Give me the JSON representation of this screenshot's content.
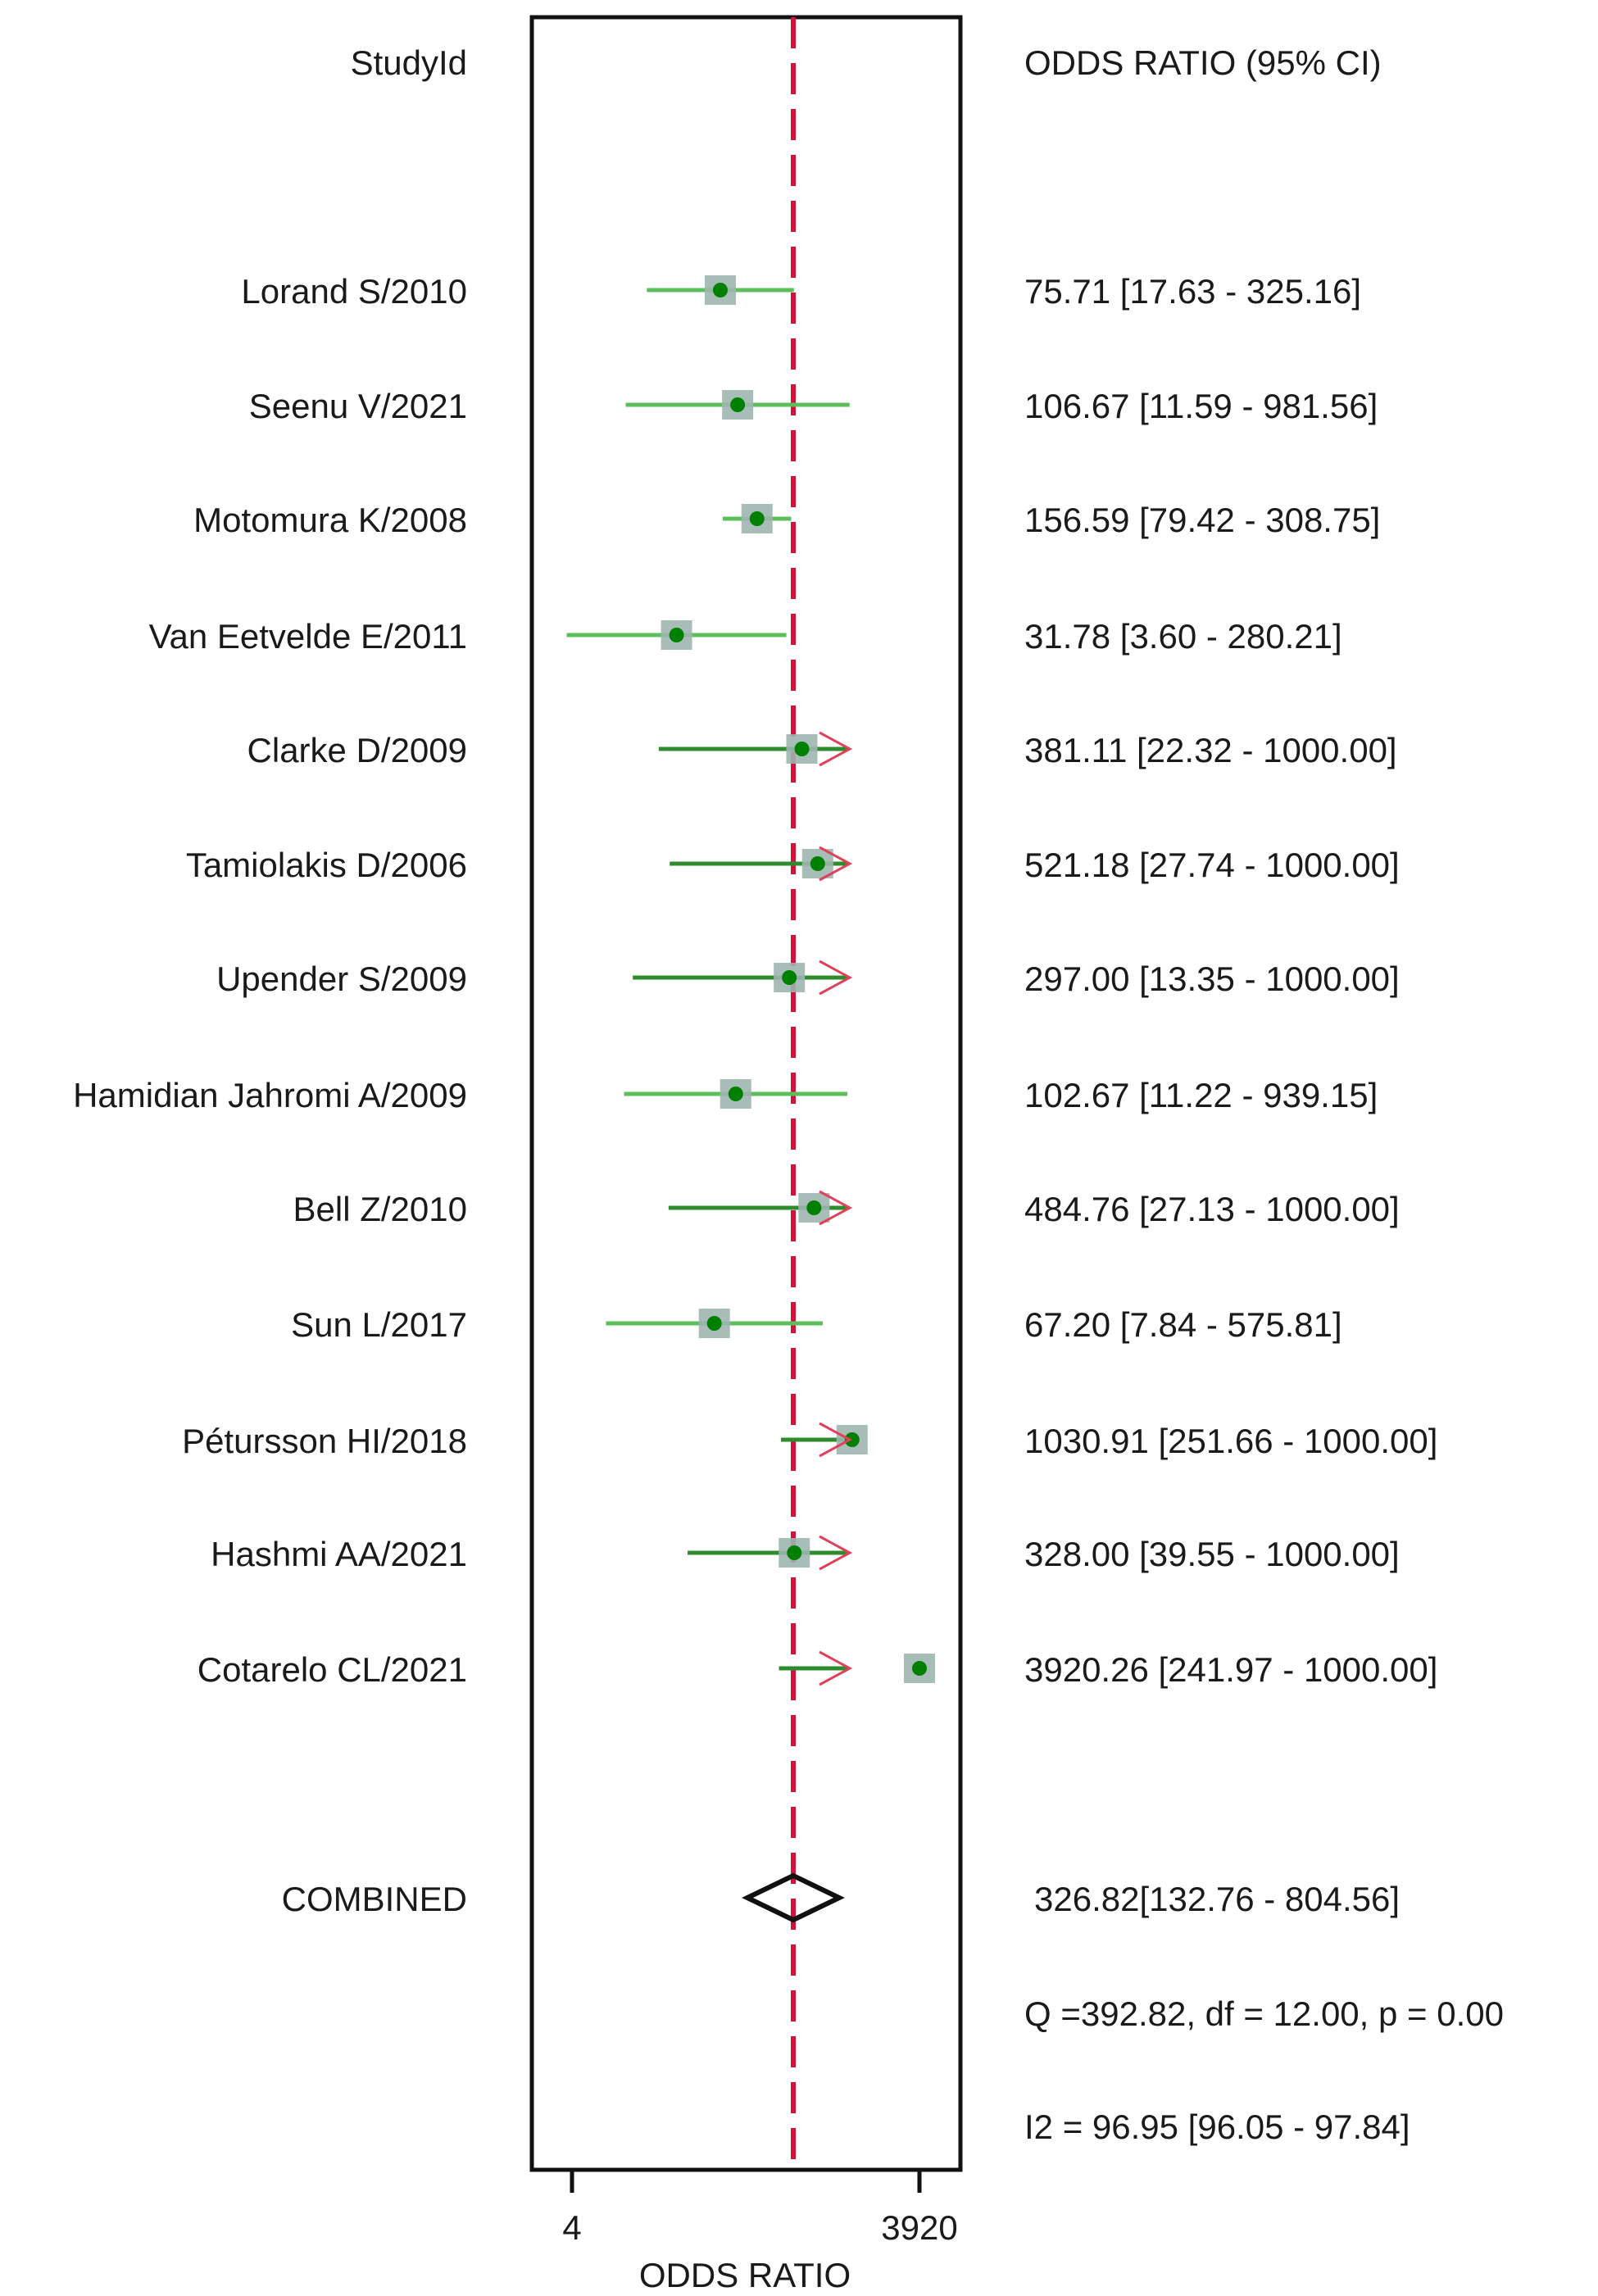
{
  "header": {
    "left": "StudyId",
    "right": "ODDS RATIO (95% CI)"
  },
  "axis": {
    "title": "ODDS RATIO",
    "ticks": [
      {
        "label": "4",
        "value": 4
      },
      {
        "label": "3920",
        "value": 3920
      }
    ]
  },
  "colors": {
    "ci_line": "#5cbf5c",
    "ci_line_dark": "#2e8b2e",
    "point": "#008000",
    "box": "#9fb5b0",
    "ref_line": "#d4103c",
    "arrow": "#e0405a",
    "frame": "#111111"
  },
  "studies": [
    {
      "label": "Lorand S/2010",
      "text": "75.71 [17.63 - 325.16]"
    },
    {
      "label": "Seenu V/2021",
      "text": "106.67 [11.59 - 981.56]"
    },
    {
      "label": "Motomura K/2008",
      "text": "156.59 [79.42 - 308.75]"
    },
    {
      "label": "Van Eetvelde E/2011",
      "text": "31.78 [3.60 - 280.21]"
    },
    {
      "label": "Clarke D/2009",
      "text": "381.11 [22.32 - 1000.00]"
    },
    {
      "label": "Tamiolakis D/2006",
      "text": "521.18 [27.74 - 1000.00]"
    },
    {
      "label": "Upender S/2009",
      "text": "297.00 [13.35 - 1000.00]"
    },
    {
      "label": "Hamidian Jahromi A/2009",
      "text": "102.67 [11.22 - 939.15]"
    },
    {
      "label": "Bell Z/2010",
      "text": "484.76 [27.13 - 1000.00]"
    },
    {
      "label": "Sun L/2017",
      "text": "67.20 [7.84 - 575.81]"
    },
    {
      "label": "Pétursson HI/2018",
      "text": "1030.91 [251.66 - 1000.00]"
    },
    {
      "label": "Hashmi AA/2021",
      "text": "328.00 [39.55 - 1000.00]"
    },
    {
      "label": "Cotarelo CL/2021",
      "text": "3920.26 [241.97 - 1000.00]"
    }
  ],
  "combined": {
    "label": "COMBINED",
    "text": "326.82[132.76 - 804.56]"
  },
  "heterogeneity": {
    "q_text": "Q =392.82, df = 12.00, p =  0.00",
    "i2_text": "I2 = 96.95 [96.05 - 97.84]"
  },
  "chart_data": {
    "type": "forest",
    "title": "",
    "xlabel": "ODDS RATIO",
    "ylabel": "StudyId",
    "x_scale": "log",
    "xlim": [
      4,
      3920
    ],
    "x_ticks": [
      4,
      3920
    ],
    "reference_line": 326.82,
    "grid": false,
    "categories": [
      "Lorand S/2010",
      "Seenu V/2021",
      "Motomura K/2008",
      "Van Eetvelde E/2011",
      "Clarke D/2009",
      "Tamiolakis D/2006",
      "Upender S/2009",
      "Hamidian Jahromi A/2009",
      "Bell Z/2010",
      "Sun L/2017",
      "Pétursson HI/2018",
      "Hashmi AA/2021",
      "Cotarelo CL/2021"
    ],
    "series": [
      {
        "name": "odds_ratio",
        "values": [
          75.71,
          106.67,
          156.59,
          31.78,
          381.11,
          521.18,
          297.0,
          102.67,
          484.76,
          67.2,
          1030.91,
          328.0,
          3920.26
        ]
      },
      {
        "name": "ci_lower",
        "values": [
          17.63,
          11.59,
          79.42,
          3.6,
          22.32,
          27.74,
          13.35,
          11.22,
          27.13,
          7.84,
          251.66,
          39.55,
          241.97
        ]
      },
      {
        "name": "ci_upper",
        "values": [
          325.16,
          981.56,
          308.75,
          280.21,
          1000.0,
          1000.0,
          1000.0,
          939.15,
          1000.0,
          575.81,
          1000.0,
          1000.0,
          1000.0
        ]
      }
    ],
    "pooled": {
      "label": "COMBINED",
      "estimate": 326.82,
      "ci_lower": 132.76,
      "ci_upper": 804.56
    },
    "heterogeneity": {
      "Q": 392.82,
      "df": 12.0,
      "p": 0.0,
      "I2": 96.95,
      "I2_ci": [
        96.05,
        97.84
      ]
    }
  }
}
